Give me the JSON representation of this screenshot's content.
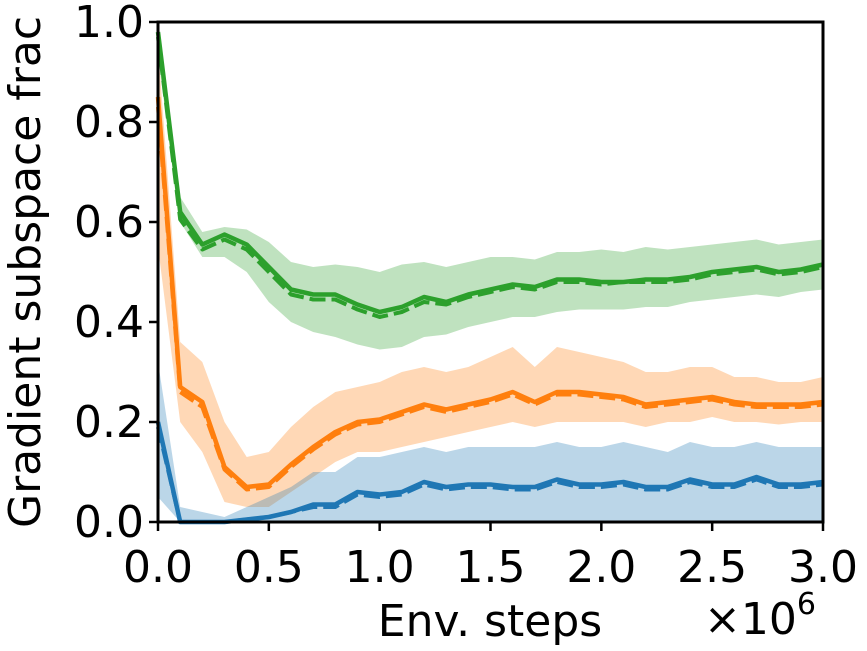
{
  "chart_data": {
    "type": "line",
    "xlabel": "Env. steps",
    "x_multiplier": "×10",
    "x_multiplier_exp": "6",
    "ylabel": "Gradient subspace frac",
    "xlim": [
      0,
      3.0
    ],
    "ylim": [
      0,
      1.0
    ],
    "xticks": [
      "0.0",
      "0.5",
      "1.0",
      "1.5",
      "2.0",
      "2.5",
      "3.0"
    ],
    "xtick_values": [
      0,
      0.5,
      1.0,
      1.5,
      2.0,
      2.5,
      3.0
    ],
    "yticks": [
      "0.0",
      "0.2",
      "0.4",
      "0.6",
      "0.8",
      "1.0"
    ],
    "ytick_values": [
      0,
      0.2,
      0.4,
      0.6,
      0.8,
      1.0
    ],
    "grid": false,
    "x": [
      0,
      0.1,
      0.2,
      0.3,
      0.4,
      0.5,
      0.6,
      0.7,
      0.8,
      0.9,
      1.0,
      1.1,
      1.2,
      1.3,
      1.4,
      1.5,
      1.6,
      1.7,
      1.8,
      1.9,
      2.0,
      2.1,
      2.2,
      2.3,
      2.4,
      2.5,
      2.6,
      2.7,
      2.8,
      2.9,
      3.0
    ],
    "series": [
      {
        "color": "#2ca02c",
        "mean": [
          0.98,
          0.62,
          0.555,
          0.575,
          0.555,
          0.51,
          0.465,
          0.455,
          0.455,
          0.435,
          0.42,
          0.43,
          0.45,
          0.44,
          0.455,
          0.465,
          0.475,
          0.47,
          0.485,
          0.485,
          0.48,
          0.48,
          0.485,
          0.485,
          0.49,
          0.5,
          0.505,
          0.51,
          0.5,
          0.505,
          0.515
        ],
        "mean_alt": [
          0.97,
          0.605,
          0.545,
          0.565,
          0.545,
          0.5,
          0.455,
          0.445,
          0.445,
          0.425,
          0.41,
          0.42,
          0.44,
          0.435,
          0.45,
          0.46,
          0.47,
          0.465,
          0.48,
          0.48,
          0.475,
          0.48,
          0.48,
          0.48,
          0.485,
          0.495,
          0.5,
          0.505,
          0.495,
          0.5,
          0.51
        ],
        "lower": [
          0.93,
          0.6,
          0.53,
          0.53,
          0.5,
          0.44,
          0.4,
          0.38,
          0.37,
          0.355,
          0.345,
          0.35,
          0.37,
          0.375,
          0.39,
          0.4,
          0.41,
          0.41,
          0.42,
          0.425,
          0.425,
          0.425,
          0.43,
          0.43,
          0.44,
          0.445,
          0.45,
          0.455,
          0.45,
          0.46,
          0.465
        ],
        "upper": [
          1.0,
          0.65,
          0.58,
          0.59,
          0.585,
          0.56,
          0.52,
          0.51,
          0.515,
          0.51,
          0.5,
          0.515,
          0.52,
          0.51,
          0.52,
          0.53,
          0.53,
          0.525,
          0.54,
          0.54,
          0.545,
          0.54,
          0.55,
          0.545,
          0.55,
          0.555,
          0.56,
          0.565,
          0.555,
          0.56,
          0.565
        ]
      },
      {
        "color": "#ff7f0e",
        "mean": [
          0.85,
          0.27,
          0.24,
          0.11,
          0.07,
          0.075,
          0.115,
          0.15,
          0.18,
          0.2,
          0.205,
          0.22,
          0.235,
          0.225,
          0.235,
          0.245,
          0.26,
          0.24,
          0.26,
          0.26,
          0.255,
          0.25,
          0.235,
          0.24,
          0.245,
          0.25,
          0.24,
          0.235,
          0.235,
          0.235,
          0.24
        ],
        "mean_alt": [
          0.83,
          0.26,
          0.23,
          0.105,
          0.065,
          0.07,
          0.11,
          0.145,
          0.175,
          0.195,
          0.2,
          0.215,
          0.23,
          0.22,
          0.23,
          0.24,
          0.255,
          0.235,
          0.255,
          0.255,
          0.25,
          0.245,
          0.23,
          0.235,
          0.24,
          0.245,
          0.235,
          0.23,
          0.23,
          0.23,
          0.235
        ],
        "lower": [
          0.55,
          0.2,
          0.14,
          0.04,
          0.03,
          0.03,
          0.06,
          0.09,
          0.12,
          0.14,
          0.14,
          0.15,
          0.16,
          0.17,
          0.18,
          0.19,
          0.2,
          0.19,
          0.2,
          0.2,
          0.2,
          0.2,
          0.19,
          0.2,
          0.2,
          0.21,
          0.2,
          0.2,
          0.195,
          0.2,
          0.2
        ],
        "upper": [
          0.95,
          0.36,
          0.32,
          0.2,
          0.13,
          0.14,
          0.19,
          0.23,
          0.26,
          0.27,
          0.28,
          0.3,
          0.31,
          0.3,
          0.31,
          0.33,
          0.35,
          0.31,
          0.35,
          0.34,
          0.33,
          0.32,
          0.3,
          0.3,
          0.31,
          0.31,
          0.29,
          0.29,
          0.28,
          0.28,
          0.29
        ]
      },
      {
        "color": "#1f77b4",
        "mean": [
          0.2,
          0.0,
          0.0,
          0.0,
          0.005,
          0.01,
          0.02,
          0.035,
          0.035,
          0.06,
          0.055,
          0.06,
          0.08,
          0.07,
          0.075,
          0.075,
          0.07,
          0.07,
          0.085,
          0.075,
          0.075,
          0.08,
          0.07,
          0.07,
          0.085,
          0.075,
          0.075,
          0.09,
          0.075,
          0.075,
          0.08
        ],
        "mean_alt": [
          0.19,
          0.0,
          0.0,
          0.0,
          0.005,
          0.01,
          0.02,
          0.03,
          0.03,
          0.055,
          0.05,
          0.055,
          0.075,
          0.065,
          0.07,
          0.07,
          0.065,
          0.065,
          0.08,
          0.07,
          0.07,
          0.075,
          0.065,
          0.065,
          0.08,
          0.07,
          0.07,
          0.085,
          0.07,
          0.07,
          0.075
        ],
        "lower": [
          0.05,
          0.0,
          0.0,
          0.0,
          0.0,
          0.0,
          0.0,
          0.0,
          0.0,
          0.0,
          0.0,
          0.0,
          0.0,
          0.0,
          0.0,
          0.0,
          0.0,
          0.0,
          0.0,
          0.0,
          0.0,
          0.0,
          0.0,
          0.0,
          0.0,
          0.0,
          0.0,
          0.0,
          0.0,
          0.0,
          0.0
        ],
        "upper": [
          0.32,
          0.03,
          0.02,
          0.01,
          0.03,
          0.05,
          0.07,
          0.1,
          0.1,
          0.13,
          0.13,
          0.14,
          0.15,
          0.14,
          0.15,
          0.15,
          0.15,
          0.15,
          0.16,
          0.15,
          0.15,
          0.16,
          0.15,
          0.14,
          0.16,
          0.15,
          0.15,
          0.16,
          0.15,
          0.15,
          0.15
        ]
      }
    ]
  }
}
